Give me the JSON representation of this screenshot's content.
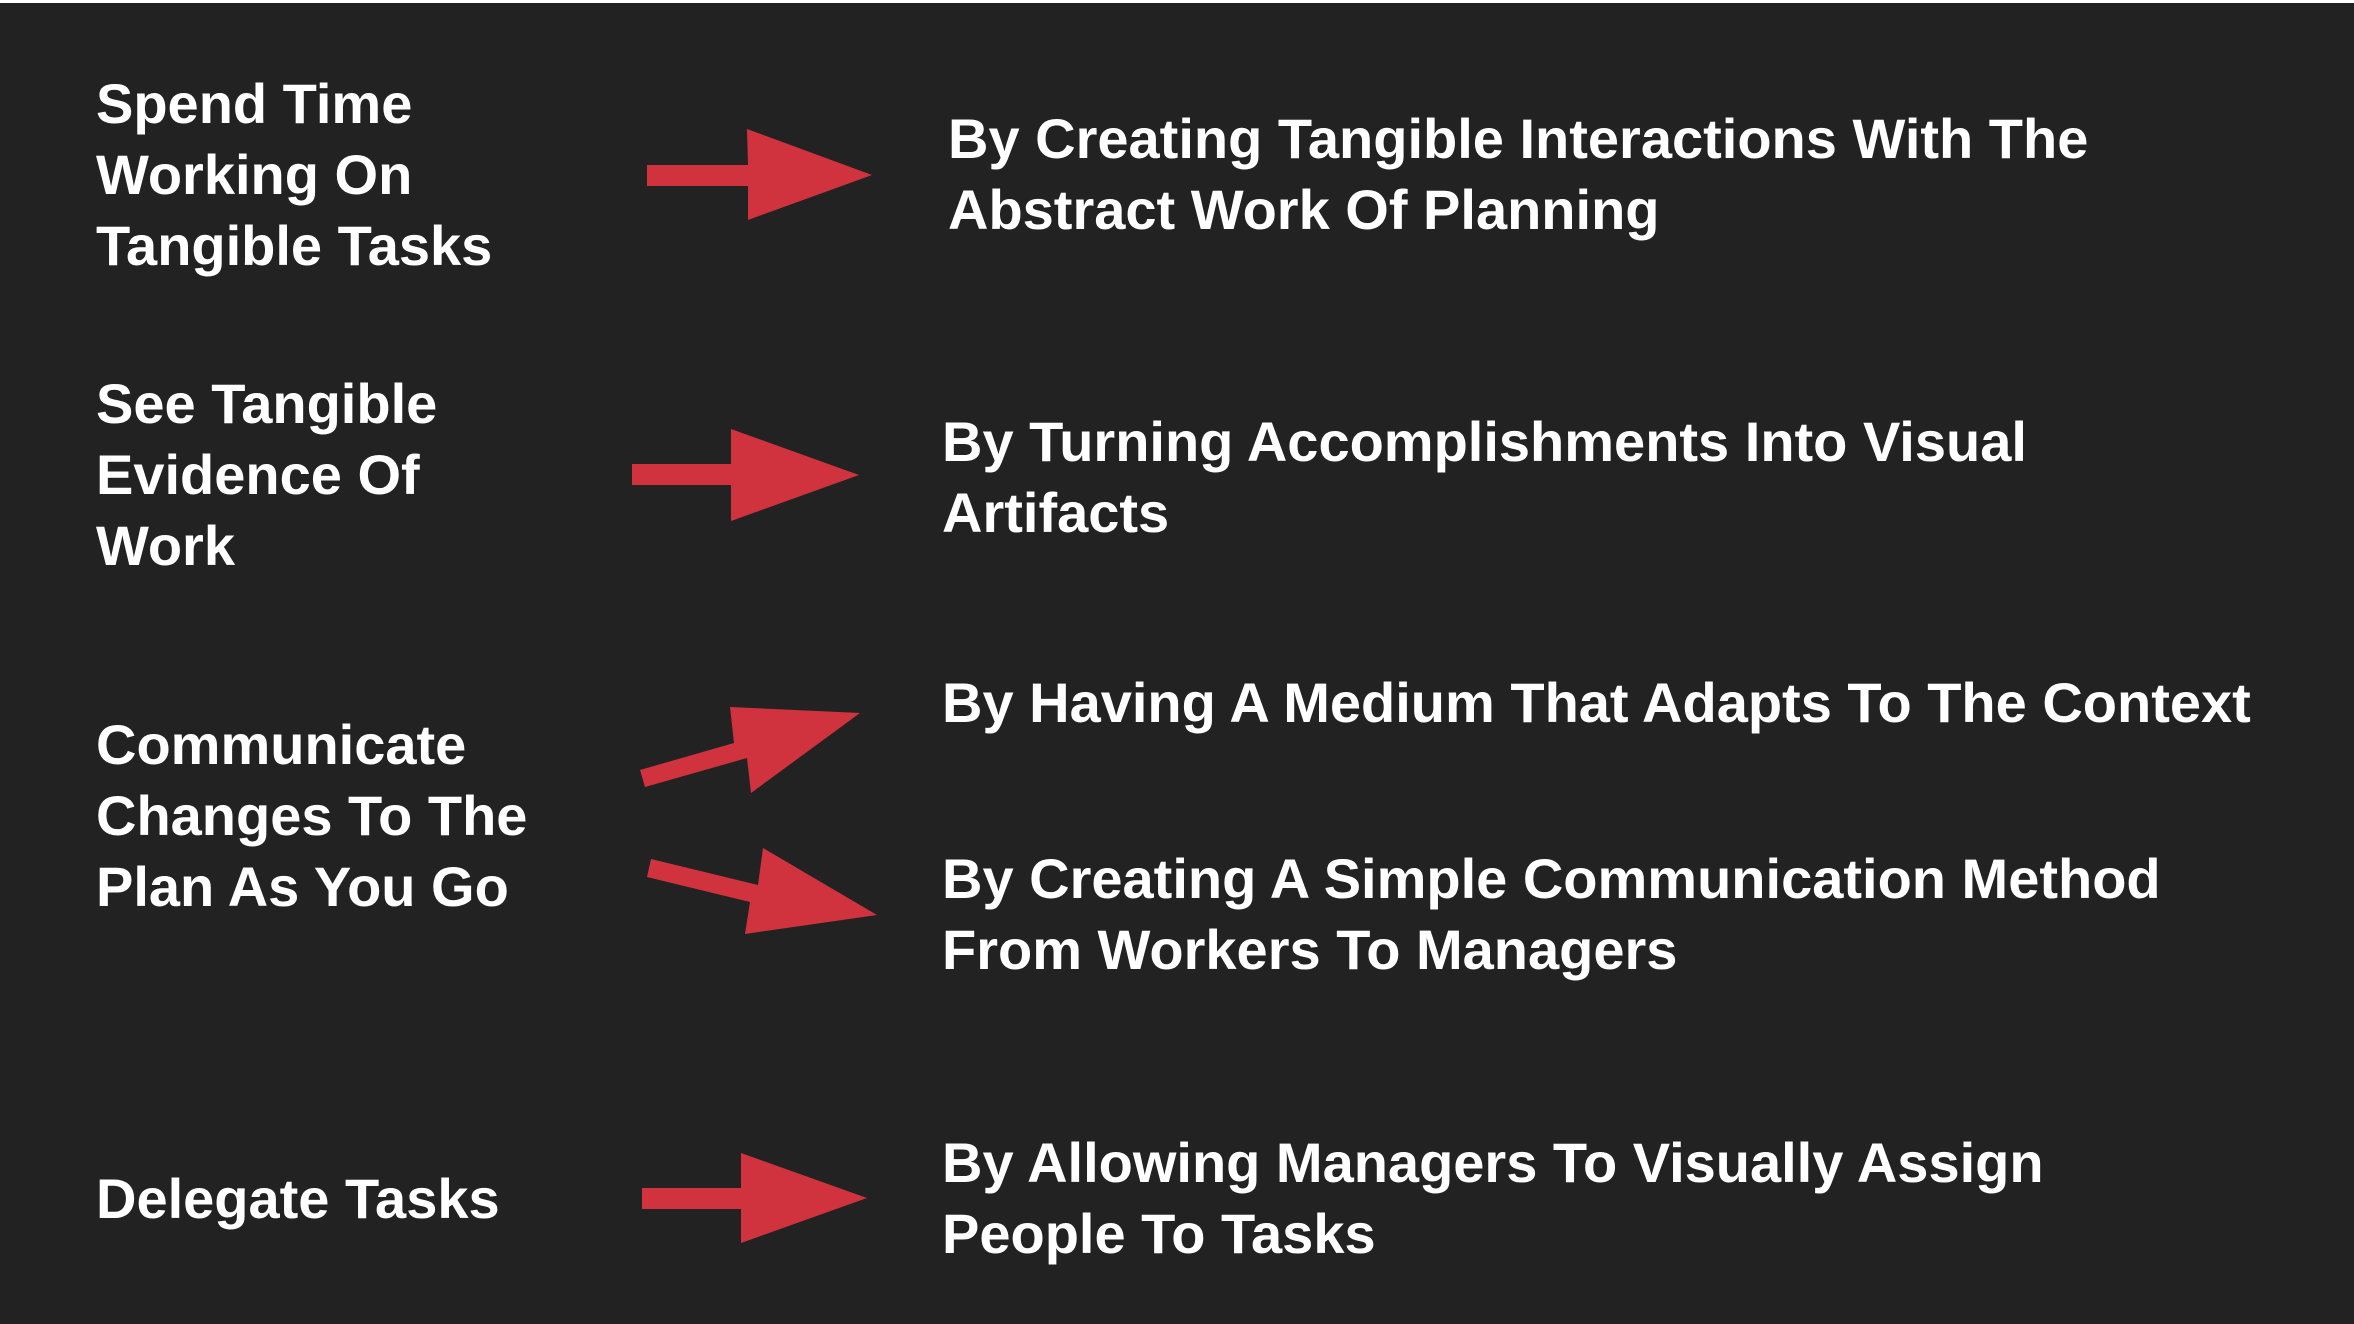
{
  "colors": {
    "background": "#222222",
    "text": "#ffffff",
    "arrow": "#d1333e"
  },
  "goals": [
    {
      "lines": [
        "Spend Time",
        "Working On",
        "Tangible Tasks"
      ]
    },
    {
      "lines": [
        "See Tangible",
        "Evidence Of",
        "Work"
      ]
    },
    {
      "lines": [
        "Communicate",
        "Changes To The",
        "Plan As You Go"
      ]
    },
    {
      "lines": [
        "Delegate Tasks"
      ]
    }
  ],
  "methods": [
    {
      "lines": [
        "By Creating Tangible Interactions With The",
        "Abstract Work Of Planning"
      ]
    },
    {
      "lines": [
        "By Turning Accomplishments Into Visual",
        "Artifacts"
      ]
    },
    {
      "lines": [
        "By Having A Medium That Adapts To The Context"
      ]
    },
    {
      "lines": [
        "By Creating A Simple Communication Method",
        "From Workers To Managers"
      ]
    },
    {
      "lines": [
        "By Allowing Managers To Visually Assign",
        "People To Tasks"
      ]
    }
  ],
  "arrows": [
    {
      "from": "goal-1",
      "to": "method-1",
      "icon": "right-arrow-icon"
    },
    {
      "from": "goal-2",
      "to": "method-2",
      "icon": "right-arrow-icon"
    },
    {
      "from": "goal-3",
      "to": "method-3",
      "icon": "up-right-arrow-icon"
    },
    {
      "from": "goal-3",
      "to": "method-4",
      "icon": "down-right-arrow-icon"
    },
    {
      "from": "goal-4",
      "to": "method-5",
      "icon": "right-arrow-icon"
    }
  ]
}
